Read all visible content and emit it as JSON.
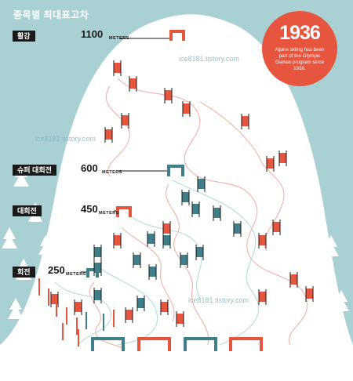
{
  "title": "종목별 최대표고차",
  "rows": [
    {
      "label": "활강",
      "value": "1100",
      "unit": "METERS"
    },
    {
      "label": "슈퍼 대회전",
      "value": "600",
      "unit": "METERS"
    },
    {
      "label": "대회전",
      "value": "450",
      "unit": "METERS"
    },
    {
      "label": "회전",
      "value": "250",
      "unit": "METERS"
    }
  ],
  "badge": {
    "year": "1936",
    "note": "Alpine skiing has been part of the Olympic Games program since 1936."
  },
  "watermarks": [
    "ice8181.tistory.com",
    "ice8181.tistory.com",
    "ice8181.tistory.com"
  ],
  "colors": {
    "background": "#a9d1d3",
    "snow": "#ffffff",
    "red": "#e8553f",
    "teal": "#3f7f8a",
    "label_bg": "#1a1a1a"
  }
}
